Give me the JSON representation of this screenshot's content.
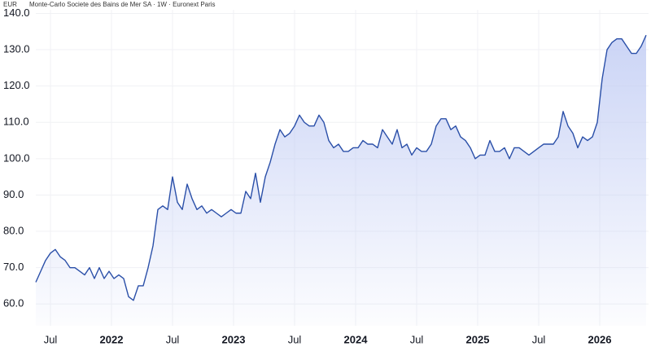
{
  "chart_data": {
    "type": "area",
    "currency": "EUR",
    "title": "Monte-Carlo Societe des Bains de Mer SA · 1W · Euronext Paris",
    "color": "#2a4fa8",
    "fill": "#c2cdf4",
    "grid": true,
    "xlim": [
      2021.38,
      2026.4
    ],
    "ylim": [
      54,
      141
    ],
    "yticks": [
      {
        "value": 60,
        "label": "60.0"
      },
      {
        "value": 70,
        "label": "70.0"
      },
      {
        "value": 80,
        "label": "80.0"
      },
      {
        "value": 90,
        "label": "90.0"
      },
      {
        "value": 100,
        "label": "100.0"
      },
      {
        "value": 110,
        "label": "110.0"
      },
      {
        "value": 120,
        "label": "120.0"
      },
      {
        "value": 130,
        "label": "130.0"
      },
      {
        "value": 140,
        "label": "140.0"
      }
    ],
    "xticks": [
      {
        "value": 2021.5,
        "label": "Jul"
      },
      2022,
      {
        "value": 2022.5,
        "label": "Jul"
      },
      2023,
      {
        "value": 2023.5,
        "label": "Jul"
      },
      2024,
      {
        "value": 2024.5,
        "label": "Jul"
      },
      2025,
      {
        "value": 2025.5,
        "label": "Jul"
      },
      2026
    ],
    "x": [
      2021.38,
      2021.42,
      2021.46,
      2021.5,
      2021.54,
      2021.58,
      2021.62,
      2021.66,
      2021.7,
      2021.74,
      2021.78,
      2021.82,
      2021.86,
      2021.9,
      2021.94,
      2021.98,
      2022.02,
      2022.06,
      2022.1,
      2022.14,
      2022.18,
      2022.22,
      2022.26,
      2022.3,
      2022.34,
      2022.38,
      2022.42,
      2022.46,
      2022.5,
      2022.54,
      2022.58,
      2022.62,
      2022.66,
      2022.7,
      2022.74,
      2022.78,
      2022.82,
      2022.86,
      2022.9,
      2022.94,
      2022.98,
      2023.02,
      2023.06,
      2023.1,
      2023.14,
      2023.18,
      2023.22,
      2023.26,
      2023.3,
      2023.34,
      2023.38,
      2023.42,
      2023.46,
      2023.5,
      2023.54,
      2023.58,
      2023.62,
      2023.66,
      2023.7,
      2023.74,
      2023.78,
      2023.82,
      2023.86,
      2023.9,
      2023.94,
      2023.98,
      2024.02,
      2024.06,
      2024.1,
      2024.14,
      2024.18,
      2024.22,
      2024.26,
      2024.3,
      2024.34,
      2024.38,
      2024.42,
      2024.46,
      2024.5,
      2024.54,
      2024.58,
      2024.62,
      2024.66,
      2024.7,
      2024.74,
      2024.78,
      2024.82,
      2024.86,
      2024.9,
      2024.94,
      2024.98,
      2025.02,
      2025.06,
      2025.1,
      2025.14,
      2025.18,
      2025.22,
      2025.26,
      2025.3,
      2025.34,
      2025.38,
      2025.42,
      2025.46,
      2025.5,
      2025.54,
      2025.58,
      2025.62,
      2025.66,
      2025.7,
      2025.74,
      2025.78,
      2025.82,
      2025.86,
      2025.9,
      2025.94,
      2025.98,
      2026.02,
      2026.06,
      2026.1,
      2026.14,
      2026.18,
      2026.22,
      2026.26,
      2026.3,
      2026.34,
      2026.38
    ],
    "values": [
      66,
      69,
      72,
      74,
      75,
      73,
      72,
      70,
      70,
      69,
      68,
      70,
      67,
      70,
      67,
      69,
      67,
      68,
      67,
      62,
      61,
      65,
      65,
      70,
      76,
      86,
      87,
      86,
      95,
      88,
      86,
      93,
      89,
      86,
      87,
      85,
      86,
      85,
      84,
      85,
      86,
      85,
      85,
      91,
      89,
      96,
      88,
      95,
      99,
      104,
      108,
      106,
      107,
      109,
      112,
      110,
      109,
      109,
      112,
      110,
      105,
      103,
      104,
      102,
      102,
      103,
      103,
      105,
      104,
      104,
      103,
      108,
      106,
      104,
      108,
      103,
      104,
      101,
      103,
      102,
      102,
      104,
      109,
      111,
      111,
      108,
      109,
      106,
      105,
      103,
      100,
      101,
      101,
      105,
      102,
      102,
      103,
      100,
      103,
      103,
      102,
      101,
      102,
      103,
      104,
      104,
      104,
      106,
      113,
      109,
      107,
      103,
      106,
      105,
      106,
      110,
      122,
      130,
      132,
      133,
      133,
      131,
      129,
      129,
      131,
      134
    ]
  }
}
